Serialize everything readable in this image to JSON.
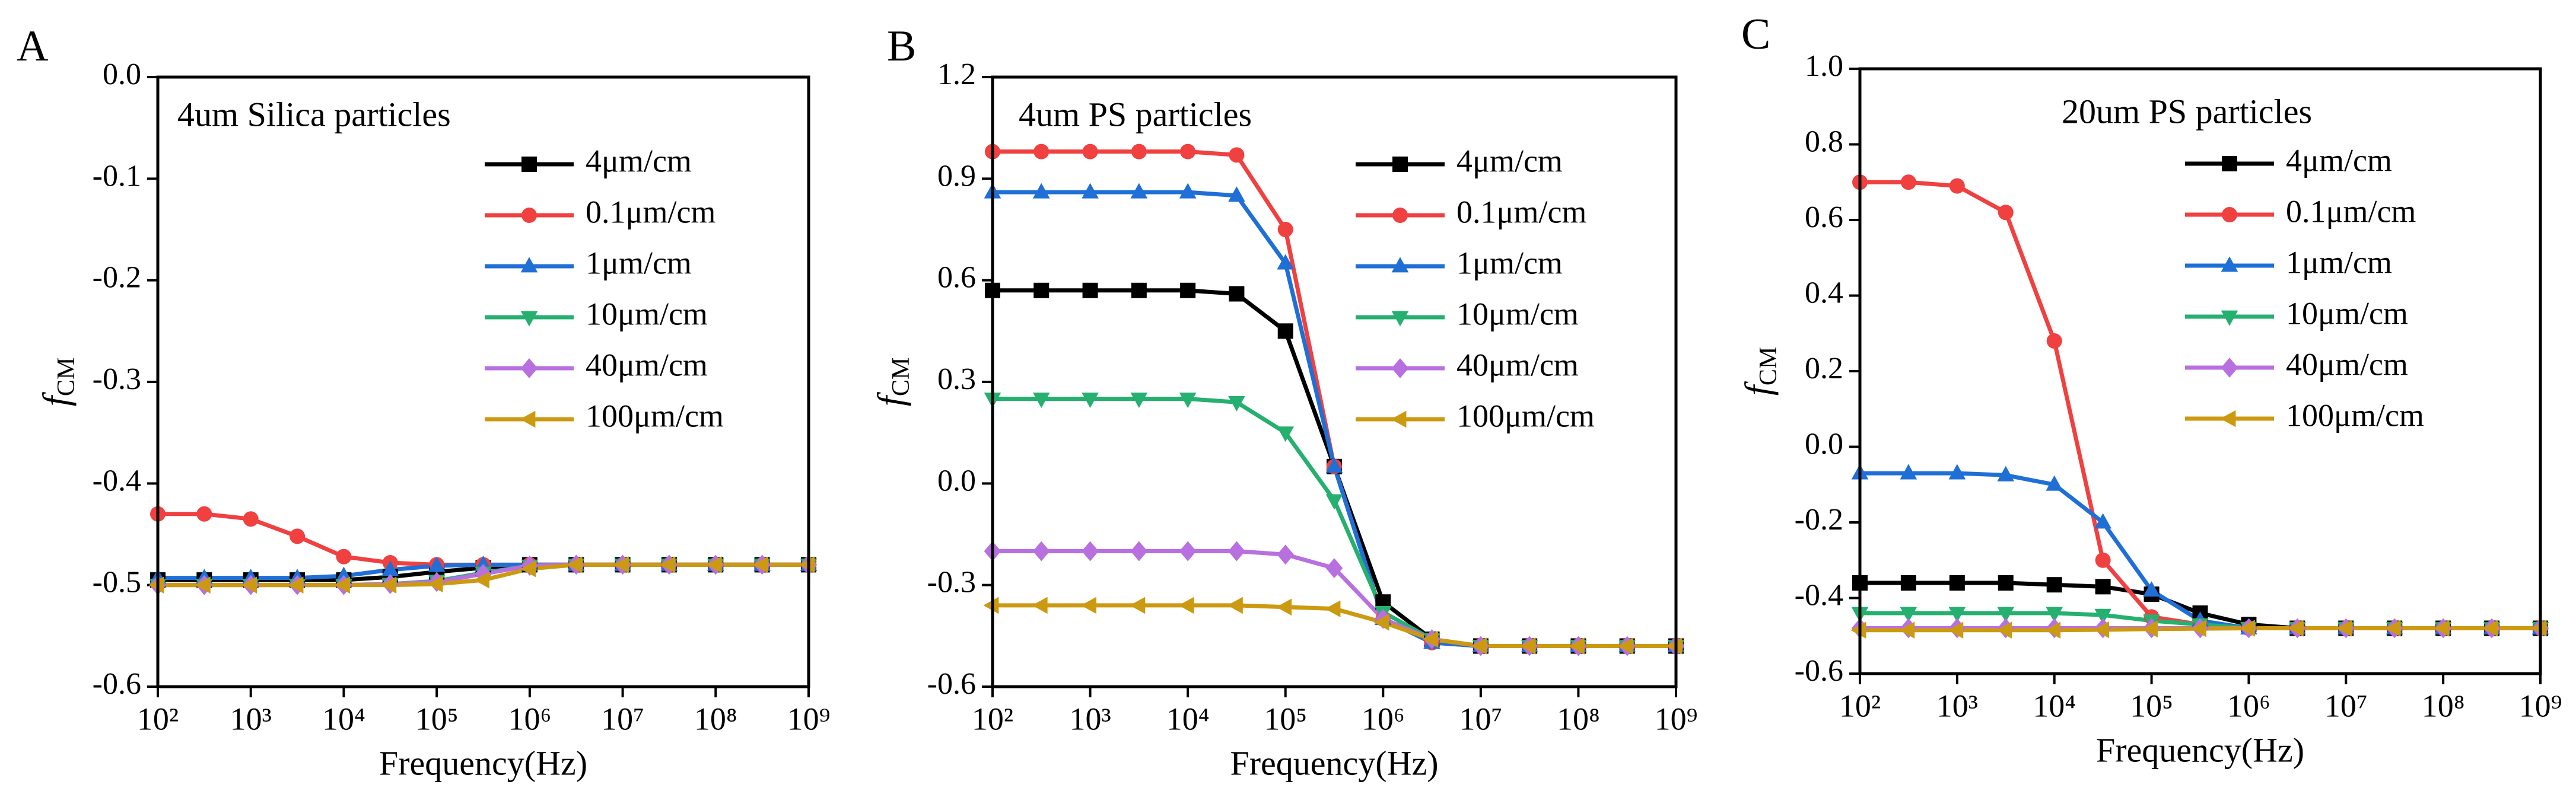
{
  "chart_data": [
    {
      "type": "line",
      "panel": "A",
      "annotation": "4um Silica particles",
      "xlabel": "Frequency(Hz)",
      "ylabel": {
        "main": "f",
        "sub": "CM"
      },
      "xscale": "log",
      "legend": "upper right",
      "x": [
        100,
        316,
        1000,
        3162,
        10000,
        31623,
        100000,
        316228,
        1000000,
        3162278,
        10000000,
        31622777,
        100000000,
        316227766,
        1000000000
      ],
      "xlim": [
        100,
        1000000000
      ],
      "xticks": [
        {
          "value": 100,
          "label": "10²"
        },
        {
          "value": 1000,
          "label": "10³"
        },
        {
          "value": 10000,
          "label": "10⁴"
        },
        {
          "value": 100000,
          "label": "10⁵"
        },
        {
          "value": 1000000,
          "label": "10⁶"
        },
        {
          "value": 10000000,
          "label": "10⁷"
        },
        {
          "value": 100000000,
          "label": "10⁸"
        },
        {
          "value": 1000000000,
          "label": "10⁹"
        }
      ],
      "ylim": [
        -0.6,
        0
      ],
      "yticks": [
        {
          "value": 0,
          "label": "0.0"
        },
        -0.1,
        -0.2,
        -0.3,
        -0.4,
        -0.5,
        -0.6
      ],
      "series": [
        {
          "name": "4μm/cm",
          "color": "#000000",
          "marker": "square",
          "values": [
            -0.495,
            -0.495,
            -0.495,
            -0.495,
            -0.495,
            -0.492,
            -0.487,
            -0.483,
            -0.48,
            -0.48,
            -0.48,
            -0.48,
            -0.48,
            -0.48,
            -0.48
          ]
        },
        {
          "name": "0.1μm/cm",
          "color": "#f04040",
          "marker": "circle",
          "values": [
            -0.43,
            -0.43,
            -0.435,
            -0.452,
            -0.472,
            -0.478,
            -0.48,
            -0.48,
            -0.48,
            -0.48,
            -0.48,
            -0.48,
            -0.48,
            -0.48,
            -0.48
          ]
        },
        {
          "name": "1μm/cm",
          "color": "#1f6fd6",
          "marker": "triangle-up",
          "values": [
            -0.493,
            -0.493,
            -0.493,
            -0.493,
            -0.491,
            -0.485,
            -0.481,
            -0.48,
            -0.48,
            -0.48,
            -0.48,
            -0.48,
            -0.48,
            -0.48,
            -0.48
          ]
        },
        {
          "name": "10μm/cm",
          "color": "#25b070",
          "marker": "triangle-down",
          "values": [
            -0.5,
            -0.5,
            -0.5,
            -0.5,
            -0.5,
            -0.499,
            -0.496,
            -0.488,
            -0.481,
            -0.48,
            -0.48,
            -0.48,
            -0.48,
            -0.48,
            -0.48
          ]
        },
        {
          "name": "40μm/cm",
          "color": "#b870e0",
          "marker": "diamond",
          "values": [
            -0.5,
            -0.5,
            -0.5,
            -0.5,
            -0.5,
            -0.499,
            -0.497,
            -0.489,
            -0.481,
            -0.48,
            -0.48,
            -0.48,
            -0.48,
            -0.48,
            -0.48
          ]
        },
        {
          "name": "100μm/cm",
          "color": "#cc9a10",
          "marker": "triangle-left",
          "values": [
            -0.5,
            -0.5,
            -0.5,
            -0.5,
            -0.5,
            -0.5,
            -0.499,
            -0.495,
            -0.484,
            -0.48,
            -0.48,
            -0.48,
            -0.48,
            -0.48,
            -0.48
          ]
        }
      ]
    },
    {
      "type": "line",
      "panel": "B",
      "annotation": "4um PS particles",
      "xlabel": "Frequency(Hz)",
      "ylabel": {
        "main": "f",
        "sub": "CM"
      },
      "xscale": "log",
      "legend": "upper right",
      "x": [
        100,
        316,
        1000,
        3162,
        10000,
        31623,
        100000,
        316228,
        1000000,
        3162278,
        10000000,
        31622777,
        100000000,
        316227766,
        1000000000
      ],
      "xlim": [
        100,
        1000000000
      ],
      "xticks": [
        {
          "value": 100,
          "label": "10²"
        },
        {
          "value": 1000,
          "label": "10³"
        },
        {
          "value": 10000,
          "label": "10⁴"
        },
        {
          "value": 100000,
          "label": "10⁵"
        },
        {
          "value": 1000000,
          "label": "10⁶"
        },
        {
          "value": 10000000,
          "label": "10⁷"
        },
        {
          "value": 100000000,
          "label": "10⁸"
        },
        {
          "value": 1000000000,
          "label": "10⁹"
        }
      ],
      "ylim": [
        -0.6,
        1.2
      ],
      "yticks": [
        1.2,
        0.9,
        0.6,
        0.3,
        {
          "value": 0,
          "label": "0.0"
        },
        -0.3,
        -0.6
      ],
      "series": [
        {
          "name": "4μm/cm",
          "color": "#000000",
          "marker": "square",
          "values": [
            0.57,
            0.57,
            0.57,
            0.57,
            0.57,
            0.56,
            0.45,
            0.05,
            -0.35,
            -0.46,
            -0.48,
            -0.48,
            -0.48,
            -0.48,
            -0.48
          ]
        },
        {
          "name": "0.1μm/cm",
          "color": "#f04040",
          "marker": "circle",
          "values": [
            0.98,
            0.98,
            0.98,
            0.98,
            0.98,
            0.97,
            0.75,
            0.05,
            -0.4,
            -0.47,
            -0.48,
            -0.48,
            -0.48,
            -0.48,
            -0.48
          ]
        },
        {
          "name": "1μm/cm",
          "color": "#1f6fd6",
          "marker": "triangle-up",
          "values": [
            0.86,
            0.86,
            0.86,
            0.86,
            0.86,
            0.85,
            0.65,
            0.05,
            -0.4,
            -0.47,
            -0.48,
            -0.48,
            -0.48,
            -0.48,
            -0.48
          ]
        },
        {
          "name": "10μm/cm",
          "color": "#25b070",
          "marker": "triangle-down",
          "values": [
            0.25,
            0.25,
            0.25,
            0.25,
            0.25,
            0.24,
            0.15,
            -0.05,
            -0.38,
            -0.46,
            -0.48,
            -0.48,
            -0.48,
            -0.48,
            -0.48
          ]
        },
        {
          "name": "40μm/cm",
          "color": "#b870e0",
          "marker": "diamond",
          "values": [
            -0.2,
            -0.2,
            -0.2,
            -0.2,
            -0.2,
            -0.2,
            -0.21,
            -0.25,
            -0.4,
            -0.46,
            -0.48,
            -0.48,
            -0.48,
            -0.48,
            -0.48
          ]
        },
        {
          "name": "100μm/cm",
          "color": "#cc9a10",
          "marker": "triangle-left",
          "values": [
            -0.36,
            -0.36,
            -0.36,
            -0.36,
            -0.36,
            -0.36,
            -0.365,
            -0.37,
            -0.41,
            -0.46,
            -0.48,
            -0.48,
            -0.48,
            -0.48,
            -0.48
          ]
        }
      ]
    },
    {
      "type": "line",
      "panel": "C",
      "annotation": "20um PS particles",
      "xlabel": "Frequency(Hz)",
      "ylabel": {
        "main": "f",
        "sub": "CM"
      },
      "xscale": "log",
      "legend": "upper right",
      "x": [
        100,
        316,
        1000,
        3162,
        10000,
        31623,
        100000,
        316228,
        1000000,
        3162278,
        10000000,
        31622777,
        100000000,
        316227766,
        1000000000
      ],
      "xlim": [
        100,
        1000000000
      ],
      "xticks": [
        {
          "value": 100,
          "label": "10²"
        },
        {
          "value": 1000,
          "label": "10³"
        },
        {
          "value": 10000,
          "label": "10⁴"
        },
        {
          "value": 100000,
          "label": "10⁵"
        },
        {
          "value": 1000000,
          "label": "10⁶"
        },
        {
          "value": 10000000,
          "label": "10⁷"
        },
        {
          "value": 100000000,
          "label": "10⁸"
        },
        {
          "value": 1000000000,
          "label": "10⁹"
        }
      ],
      "ylim": [
        -0.6,
        1.0
      ],
      "yticks": [
        {
          "value": 1,
          "label": "1.0"
        },
        0.8,
        0.6,
        0.4,
        0.2,
        {
          "value": 0,
          "label": "0.0"
        },
        -0.2,
        -0.4,
        -0.6
      ],
      "series": [
        {
          "name": "4μm/cm",
          "color": "#000000",
          "marker": "square",
          "values": [
            -0.36,
            -0.36,
            -0.36,
            -0.36,
            -0.365,
            -0.37,
            -0.39,
            -0.44,
            -0.47,
            -0.48,
            -0.48,
            -0.48,
            -0.48,
            -0.48,
            -0.48
          ]
        },
        {
          "name": "0.1μm/cm",
          "color": "#f04040",
          "marker": "circle",
          "values": [
            0.7,
            0.7,
            0.69,
            0.62,
            0.28,
            -0.3,
            -0.45,
            -0.47,
            -0.48,
            -0.48,
            -0.48,
            -0.48,
            -0.48,
            -0.48,
            -0.48
          ]
        },
        {
          "name": "1μm/cm",
          "color": "#1f6fd6",
          "marker": "triangle-up",
          "values": [
            -0.07,
            -0.07,
            -0.07,
            -0.075,
            -0.1,
            -0.2,
            -0.38,
            -0.46,
            -0.48,
            -0.48,
            -0.48,
            -0.48,
            -0.48,
            -0.48,
            -0.48
          ]
        },
        {
          "name": "10μm/cm",
          "color": "#25b070",
          "marker": "triangle-down",
          "values": [
            -0.44,
            -0.44,
            -0.44,
            -0.44,
            -0.44,
            -0.445,
            -0.46,
            -0.47,
            -0.48,
            -0.48,
            -0.48,
            -0.48,
            -0.48,
            -0.48,
            -0.48
          ]
        },
        {
          "name": "40μm/cm",
          "color": "#b870e0",
          "marker": "diamond",
          "values": [
            -0.48,
            -0.48,
            -0.48,
            -0.48,
            -0.48,
            -0.48,
            -0.48,
            -0.48,
            -0.48,
            -0.48,
            -0.48,
            -0.48,
            -0.48,
            -0.48,
            -0.48
          ]
        },
        {
          "name": "100μm/cm",
          "color": "#cc9a10",
          "marker": "triangle-left",
          "values": [
            -0.485,
            -0.485,
            -0.485,
            -0.485,
            -0.485,
            -0.484,
            -0.482,
            -0.481,
            -0.48,
            -0.48,
            -0.48,
            -0.48,
            -0.48,
            -0.48,
            -0.48
          ]
        }
      ]
    }
  ]
}
